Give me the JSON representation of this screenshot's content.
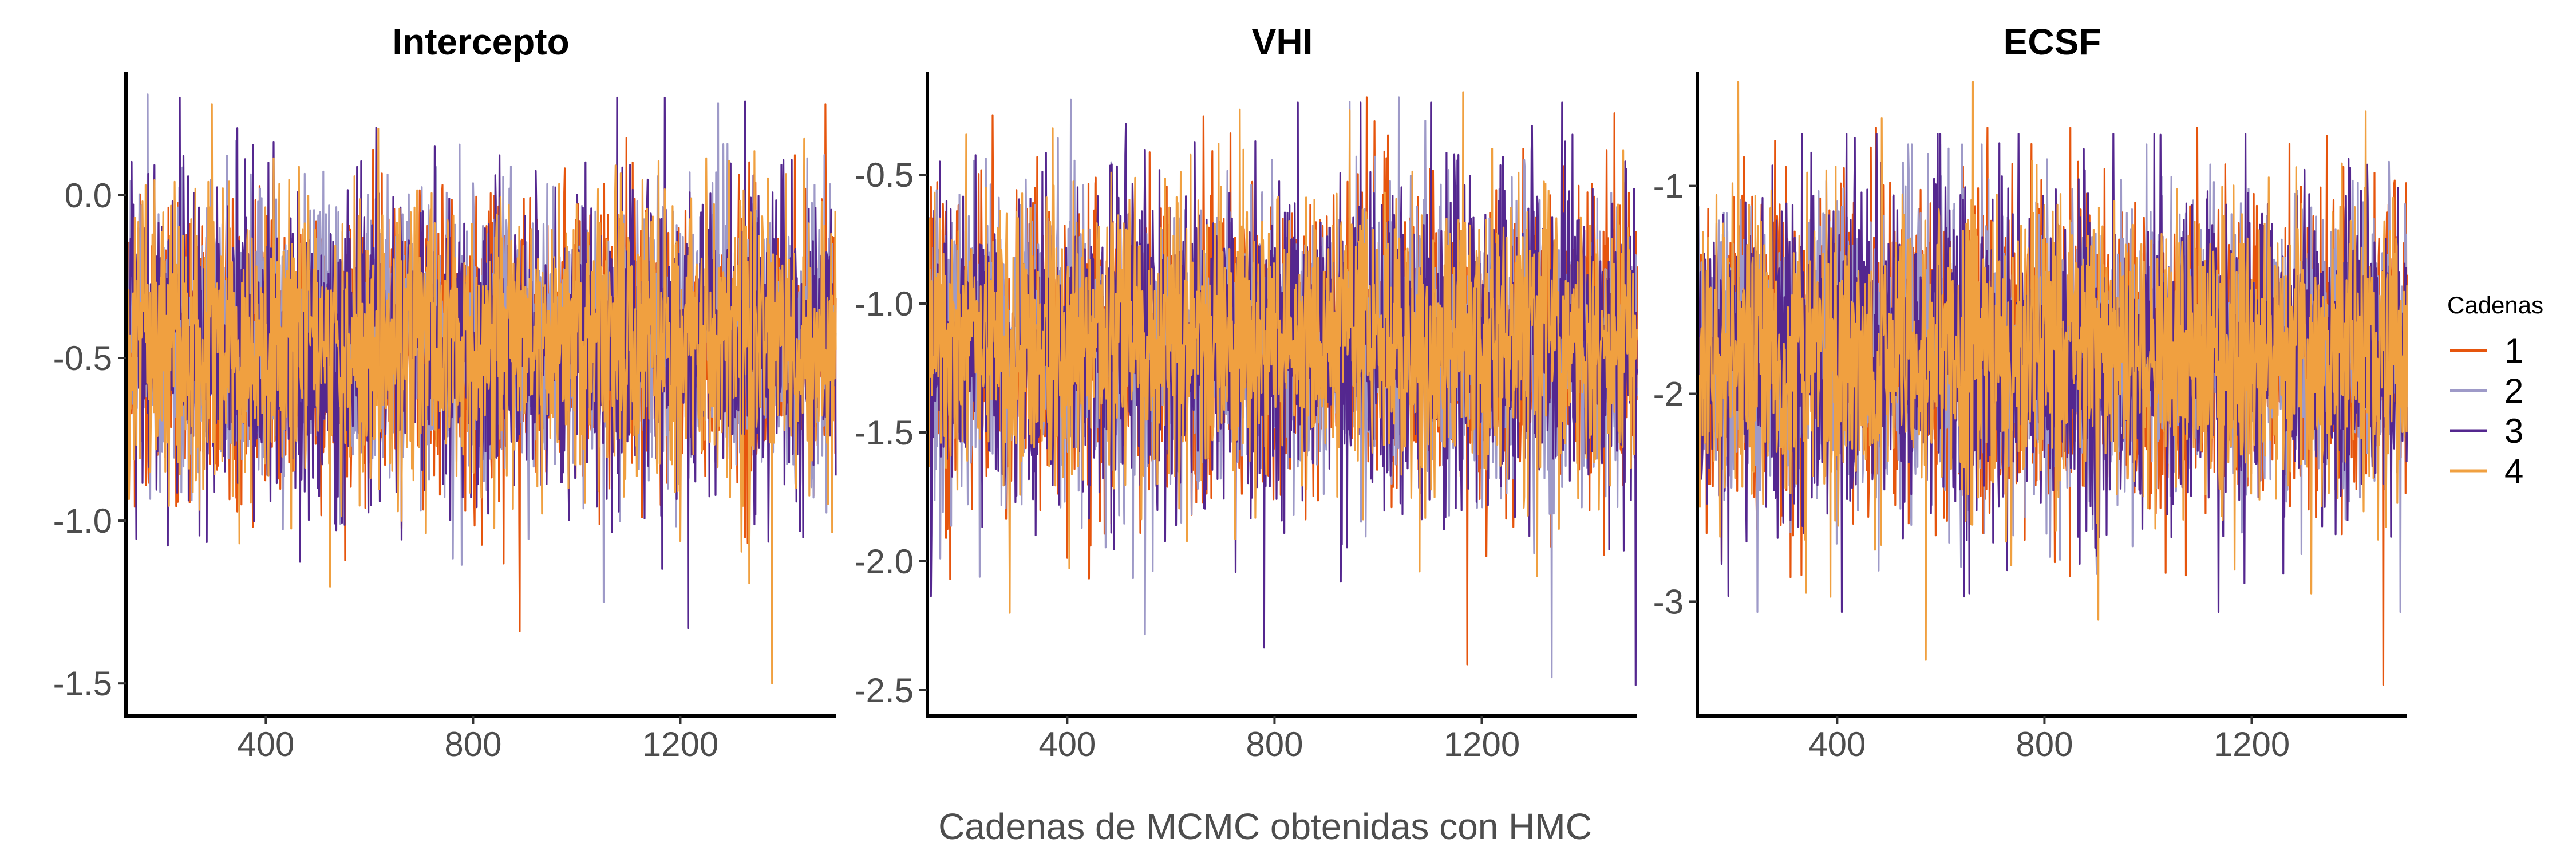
{
  "chart_data": {
    "type": "line",
    "xlabel": "Cadenas de MCMC obtenidas con HMC",
    "x_range": [
      130,
      1500
    ],
    "x_ticks": [
      400,
      800,
      1200
    ],
    "legend": {
      "title": "Cadenas",
      "placement": "right",
      "entries": [
        {
          "label": "1",
          "color": "#E6550D"
        },
        {
          "label": "2",
          "color": "#9E9AC8"
        },
        {
          "label": "3",
          "color": "#54278F"
        },
        {
          "label": "4",
          "color": "#F0A040"
        }
      ]
    },
    "panels": [
      {
        "title": "Intercepto",
        "ylim": [
          -1.6,
          0.38
        ],
        "y_ticks": [
          "0.0",
          "-0.5",
          "-1.0",
          "-1.5"
        ],
        "y_tick_values": [
          0.0,
          -0.5,
          -1.0,
          -1.5
        ],
        "series": [
          {
            "name": "1",
            "mean": -0.45,
            "sd": 0.22,
            "min": -1.34,
            "max": 0.28
          },
          {
            "name": "2",
            "mean": -0.45,
            "sd": 0.22,
            "min": -1.25,
            "max": 0.31
          },
          {
            "name": "3",
            "mean": -0.45,
            "sd": 0.24,
            "min": -1.33,
            "max": 0.3
          },
          {
            "name": "4",
            "mean": -0.45,
            "sd": 0.22,
            "min": -1.5,
            "max": 0.28
          }
        ]
      },
      {
        "title": "VHI",
        "ylim": [
          -2.6,
          -0.1
        ],
        "y_ticks": [
          "-0.5",
          "-1.0",
          "-1.5",
          "-2.0",
          "-2.5"
        ],
        "y_tick_values": [
          -0.5,
          -1.0,
          -1.5,
          -2.0,
          -2.5
        ],
        "series": [
          {
            "name": "1",
            "mean": -1.15,
            "sd": 0.3,
            "min": -2.4,
            "max": -0.2
          },
          {
            "name": "2",
            "mean": -1.15,
            "sd": 0.3,
            "min": -2.45,
            "max": -0.2
          },
          {
            "name": "3",
            "mean": -1.15,
            "sd": 0.32,
            "min": -2.48,
            "max": -0.22
          },
          {
            "name": "4",
            "mean": -1.15,
            "sd": 0.28,
            "min": -2.2,
            "max": -0.18
          }
        ]
      },
      {
        "title": "ECSF",
        "ylim": [
          -3.55,
          -0.45
        ],
        "y_ticks": [
          "-1",
          "-2",
          "-3"
        ],
        "y_tick_values": [
          -1,
          -2,
          -3
        ],
        "series": [
          {
            "name": "1",
            "mean": -1.8,
            "sd": 0.38,
            "min": -3.4,
            "max": -0.72
          },
          {
            "name": "2",
            "mean": -1.8,
            "sd": 0.38,
            "min": -3.05,
            "max": -0.8
          },
          {
            "name": "3",
            "mean": -1.8,
            "sd": 0.4,
            "min": -3.05,
            "max": -0.75
          },
          {
            "name": "4",
            "mean": -1.8,
            "sd": 0.37,
            "min": -3.28,
            "max": -0.5
          }
        ]
      }
    ]
  }
}
